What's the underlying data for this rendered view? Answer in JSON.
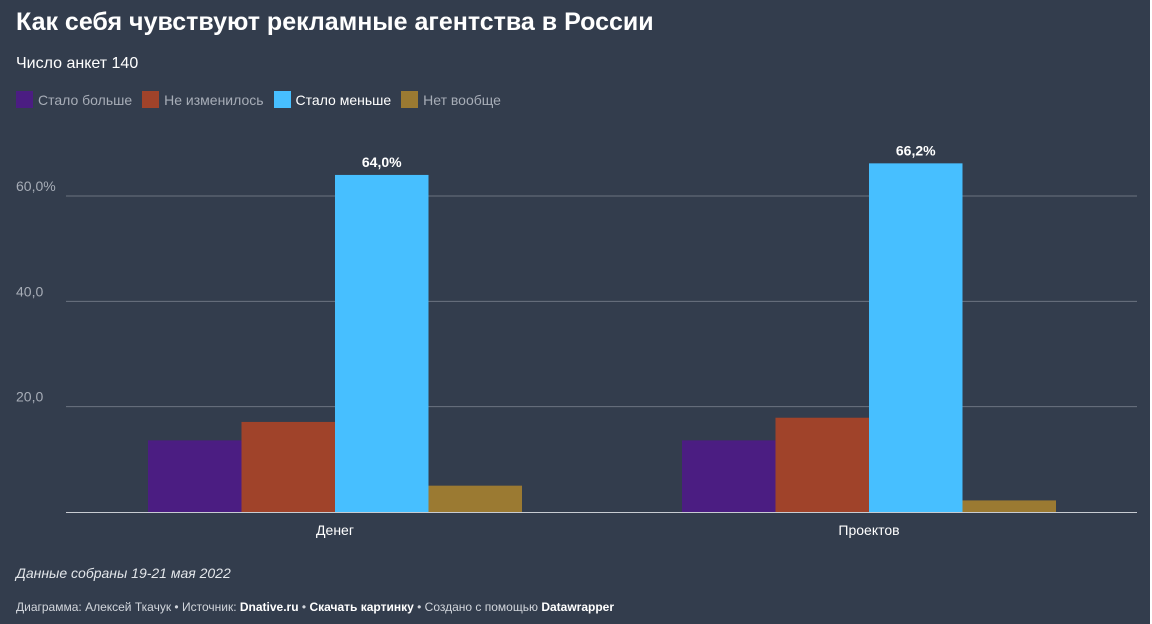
{
  "title": "Как себя чувствуют рекламные агентства в России",
  "subtitle": "Число анкет 140",
  "colors": {
    "background": "#333d4d",
    "gridline": "#6b7380",
    "axis_text": "#a7adb7"
  },
  "legend": [
    {
      "label": "Стало больше",
      "color": "#4b1d82",
      "active": false
    },
    {
      "label": "Не изменилось",
      "color": "#a0432a",
      "active": false
    },
    {
      "label": "Стало меньше",
      "color": "#47bfff",
      "active": true
    },
    {
      "label": "Нет вообще",
      "color": "#9b7a32",
      "active": false
    }
  ],
  "chart_data": {
    "type": "bar",
    "title": "Как себя чувствуют рекламные агентства в России",
    "subtitle": "Число анкет 140",
    "categories": [
      "Денег",
      "Проектов"
    ],
    "series": [
      {
        "name": "Стало больше",
        "values": [
          13.6,
          13.6
        ],
        "color": "#4b1d82"
      },
      {
        "name": "Не изменилось",
        "values": [
          17.1,
          17.9
        ],
        "color": "#a0432a"
      },
      {
        "name": "Стало меньше",
        "values": [
          64.0,
          66.2
        ],
        "color": "#47bfff"
      },
      {
        "name": "Нет вообще",
        "values": [
          5.0,
          2.2
        ],
        "color": "#9b7a32"
      }
    ],
    "data_labels": [
      {
        "category": "Денег",
        "series": "Стало меньше",
        "text": "64,0%"
      },
      {
        "category": "Проектов",
        "series": "Стало меньше",
        "text": "66,2%"
      }
    ],
    "yticks": [
      {
        "value": 20,
        "label": "20,0"
      },
      {
        "value": 40,
        "label": "40,0"
      },
      {
        "value": 60,
        "label": "60,0%"
      }
    ],
    "ylim": [
      0,
      70
    ],
    "grid": true,
    "legend_position": "top-left"
  },
  "notes": "Данные собраны 19-21 мая 2022",
  "footer": {
    "chart_by_label": "Диаграмма: Алексей Ткачук",
    "source_label": "Источник:",
    "source_name": "Dnative.ru",
    "download_label": "Скачать картинку",
    "created_label": "Создано с помощью",
    "tool_name": "Datawrapper",
    "separator": "•"
  }
}
